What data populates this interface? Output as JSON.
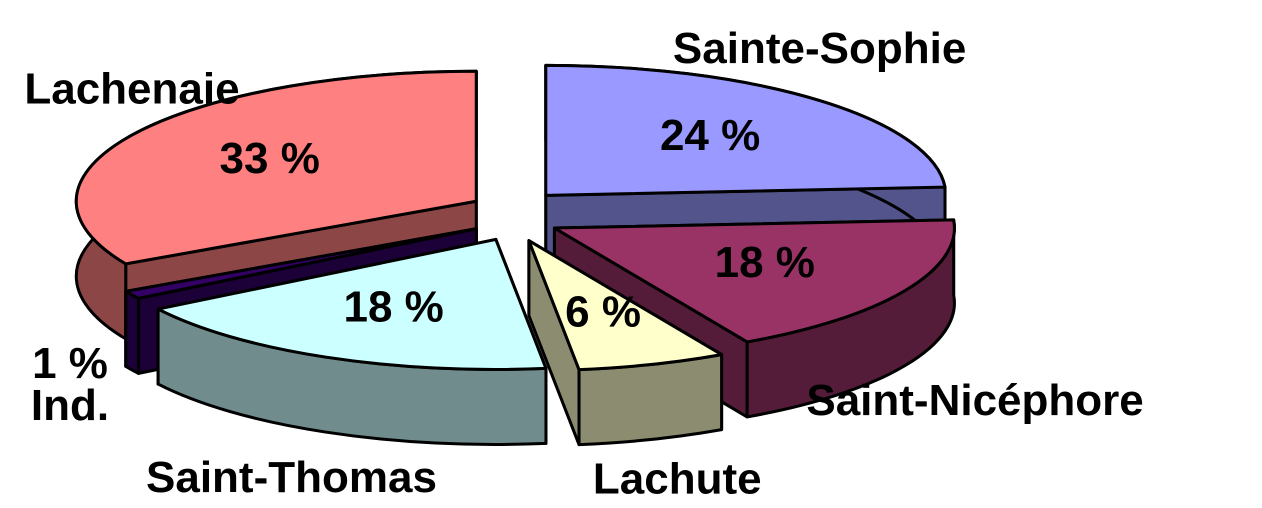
{
  "chart_data": {
    "type": "pie3d",
    "categories": [
      "Sainte-Sophie",
      "Saint-Nicéphore",
      "Lachute",
      "Saint-Thomas",
      "Ind.",
      "Lachenaie"
    ],
    "values": [
      24,
      18,
      6,
      18,
      1,
      33
    ],
    "value_labels": [
      "24 %",
      "18 %",
      "6 %",
      "18 %",
      "1 %",
      "33 %"
    ],
    "colors": [
      "#9999ff",
      "#993366",
      "#ffffcc",
      "#ccffff",
      "#330066",
      "#ff8080"
    ]
  }
}
